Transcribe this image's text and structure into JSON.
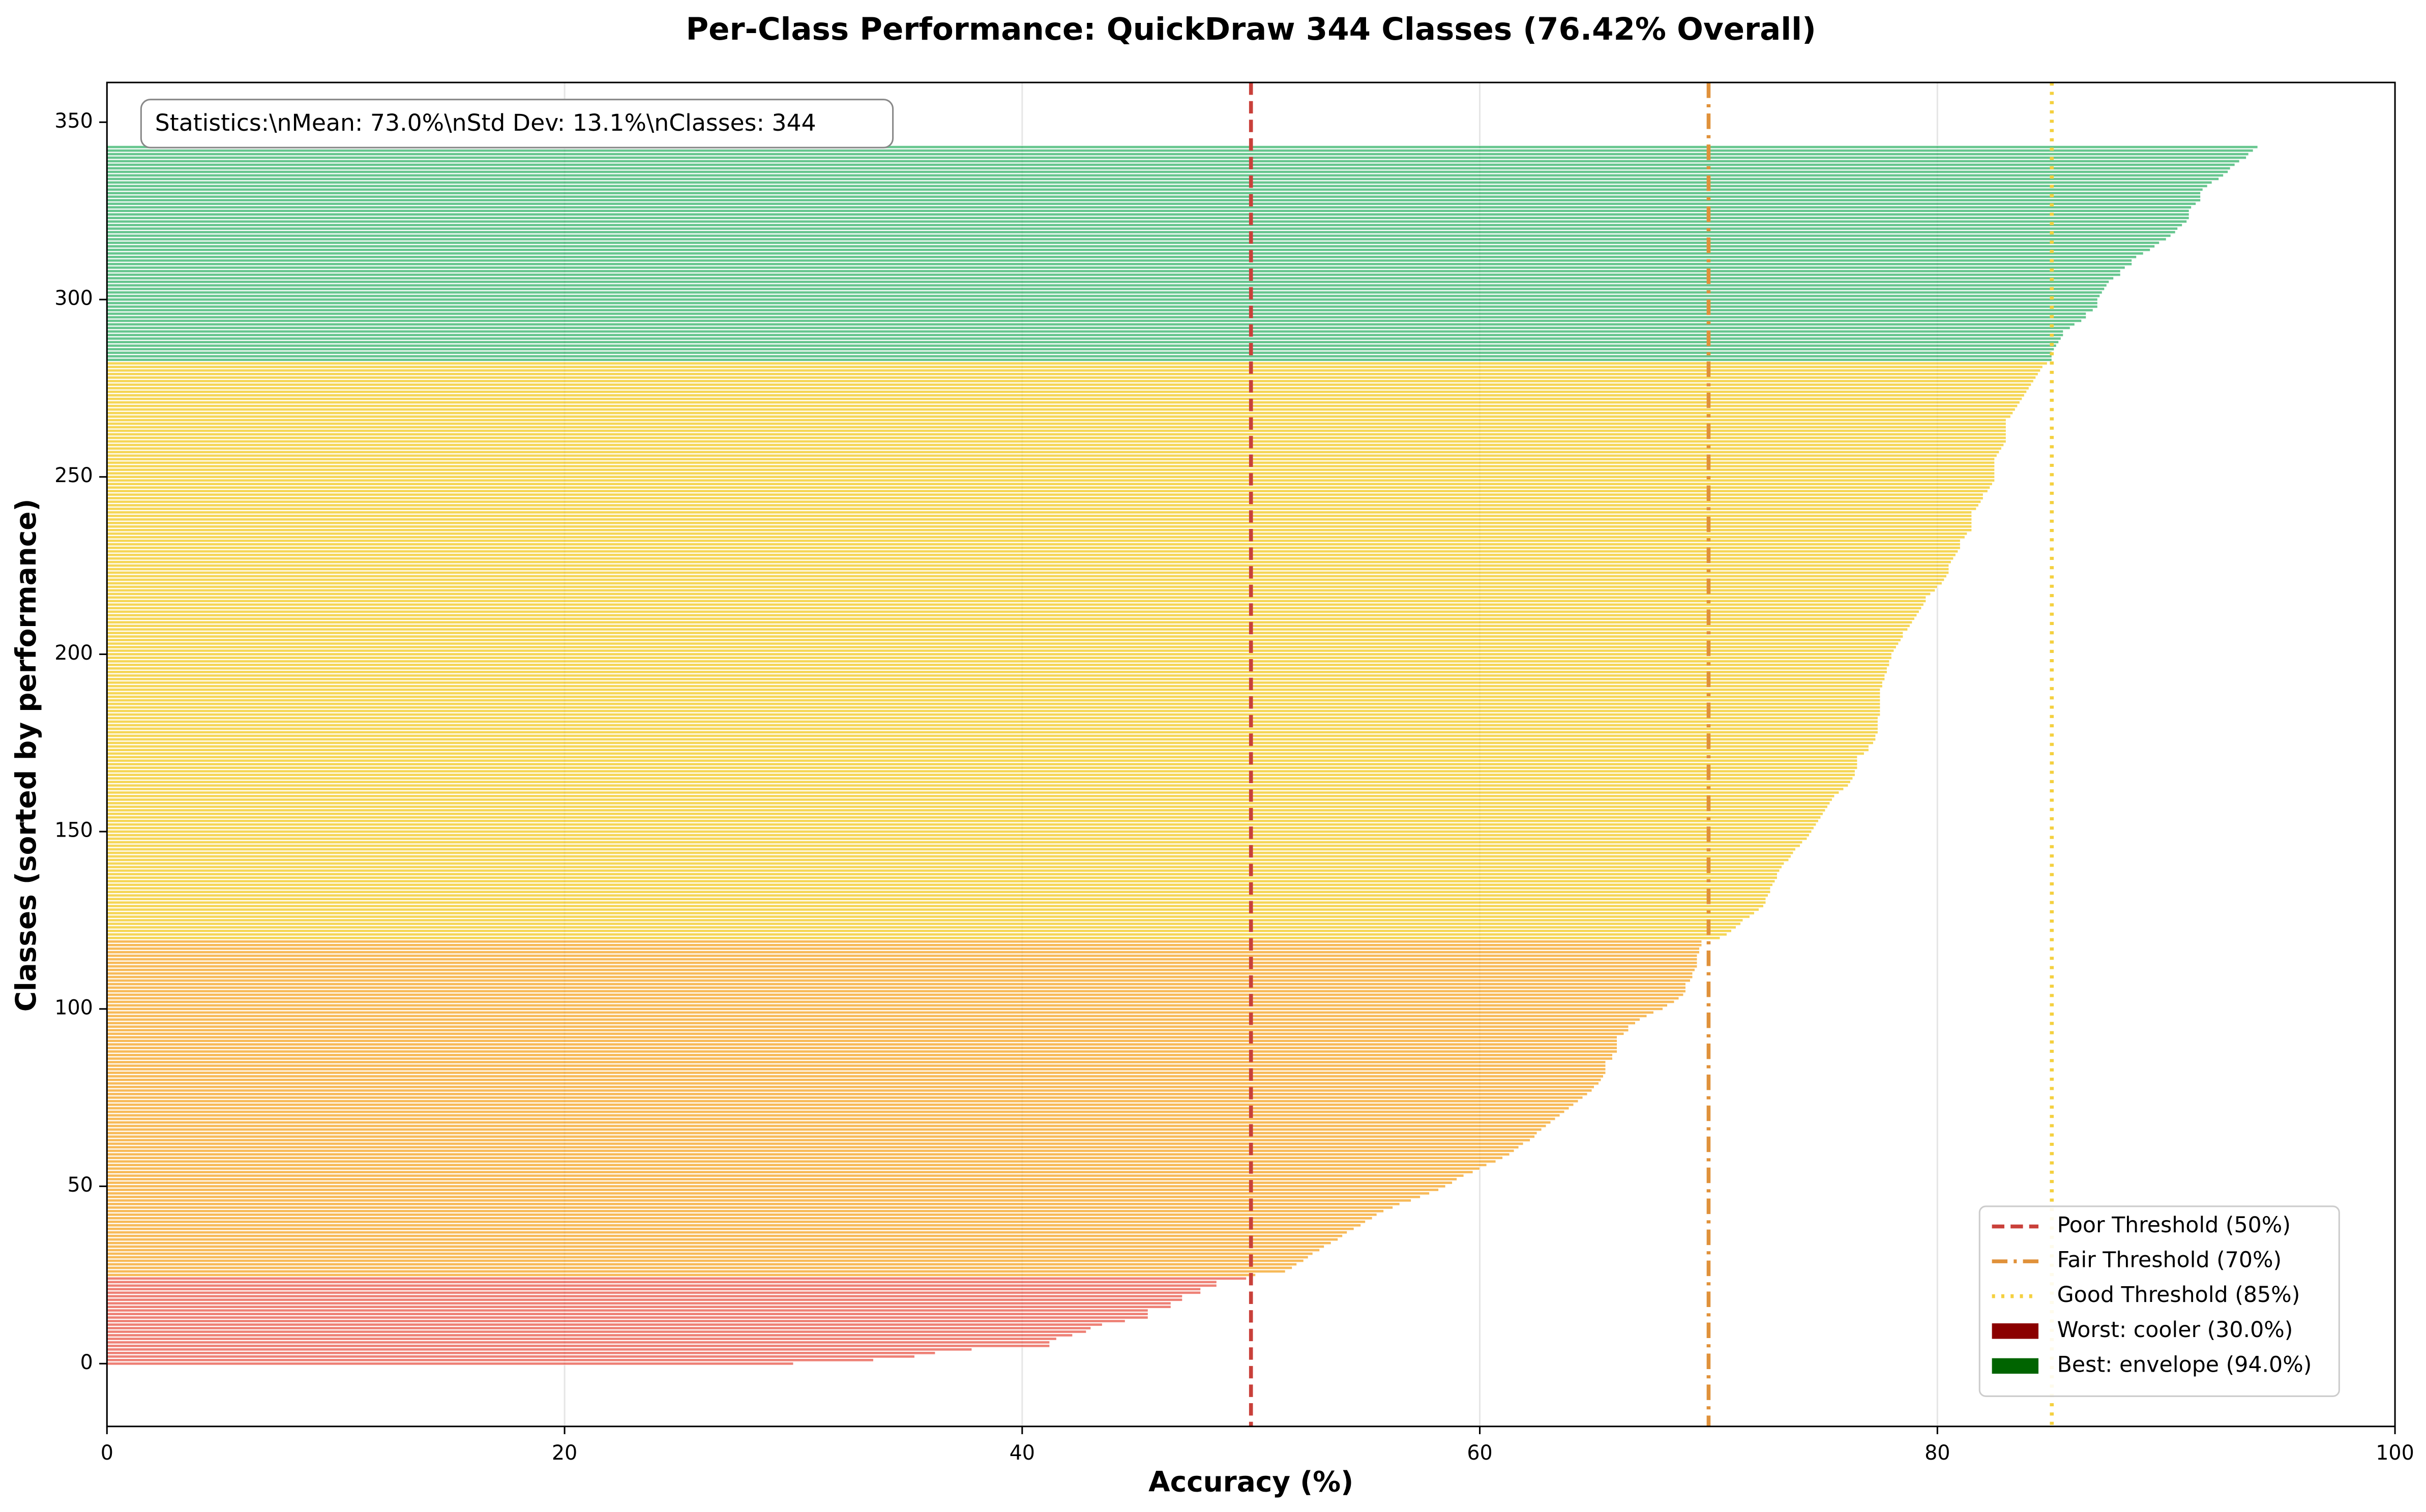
{
  "chart_data": {
    "type": "barh",
    "title": "Per-Class Performance: QuickDraw 344 Classes (76.42% Overall)",
    "x_label": "Accuracy (%)",
    "y_label": "Classes (sorted by performance)",
    "stats_text": "Statistics:\\nMean: 73.0%\\nStd Dev: 13.1%\\nClasses: 344",
    "xlim": [
      0,
      100
    ],
    "xticks": [
      0,
      20,
      40,
      60,
      80,
      100
    ],
    "ylim": [
      -17.7,
      361.2
    ],
    "yticks": [
      0,
      50,
      100,
      150,
      200,
      250,
      300,
      350
    ],
    "grid": true,
    "legend_position": "lower right",
    "bar_colors": [
      "#e74c3c",
      "#f39c12",
      "#f1c40f",
      "#27ae60"
    ],
    "thresholds": [
      {
        "name": "Poor Threshold (50%)",
        "value": 50,
        "color": "#c9403a",
        "style": "dashed"
      },
      {
        "name": "Fair Threshold (70%)",
        "value": 70,
        "color": "#e0913a",
        "style": "dashdot"
      },
      {
        "name": "Good Threshold (85%)",
        "value": 85,
        "color": "#f4d03f",
        "style": "dotted"
      }
    ],
    "highlights": [
      {
        "name": "Worst: cooler (30.0%)",
        "color": "#8b0000"
      },
      {
        "name": "Best: envelope (94.0%)",
        "color": "#006400"
      }
    ],
    "values": [
      30.0,
      33.5,
      35.3,
      36.2,
      37.8,
      41.2,
      41.2,
      41.5,
      42.2,
      42.8,
      43.0,
      43.5,
      44.5,
      45.5,
      45.5,
      45.5,
      46.5,
      46.5,
      47.0,
      47.0,
      47.8,
      47.8,
      48.5,
      48.5,
      49.8,
      50.2,
      51.5,
      51.8,
      52.0,
      52.3,
      52.5,
      52.7,
      53.0,
      53.2,
      53.5,
      53.8,
      54.0,
      54.2,
      54.5,
      54.8,
      55.0,
      55.3,
      55.5,
      55.8,
      56.2,
      56.5,
      57.0,
      57.4,
      57.8,
      58.2,
      58.5,
      58.8,
      59.0,
      59.3,
      59.7,
      60.0,
      60.3,
      60.7,
      61.0,
      61.3,
      61.5,
      61.7,
      61.9,
      62.2,
      62.4,
      62.5,
      62.7,
      62.9,
      63.1,
      63.3,
      63.5,
      63.7,
      63.9,
      64.1,
      64.3,
      64.5,
      64.7,
      64.9,
      65.0,
      65.2,
      65.3,
      65.4,
      65.5,
      65.5,
      65.5,
      65.5,
      65.8,
      65.8,
      66.0,
      66.0,
      66.0,
      66.0,
      66.0,
      66.3,
      66.5,
      66.5,
      66.8,
      67.0,
      67.3,
      67.6,
      68.0,
      68.2,
      68.5,
      68.7,
      68.9,
      69.0,
      69.0,
      69.0,
      69.2,
      69.3,
      69.3,
      69.4,
      69.5,
      69.5,
      69.5,
      69.5,
      69.6,
      69.6,
      69.7,
      69.7,
      70.5,
      70.8,
      71.0,
      71.2,
      71.4,
      71.5,
      71.8,
      72.0,
      72.2,
      72.4,
      72.5,
      72.5,
      72.6,
      72.7,
      72.7,
      72.8,
      72.9,
      73.0,
      73.0,
      73.1,
      73.2,
      73.3,
      73.5,
      73.6,
      73.7,
      73.8,
      74.0,
      74.1,
      74.3,
      74.4,
      74.5,
      74.6,
      74.7,
      74.8,
      74.9,
      75.0,
      75.1,
      75.2,
      75.3,
      75.4,
      75.5,
      75.7,
      75.9,
      76.1,
      76.2,
      76.3,
      76.4,
      76.4,
      76.5,
      76.5,
      76.5,
      76.5,
      76.8,
      77.0,
      77.0,
      77.2,
      77.3,
      77.3,
      77.4,
      77.4,
      77.4,
      77.4,
      77.4,
      77.5,
      77.5,
      77.5,
      77.5,
      77.5,
      77.5,
      77.5,
      77.5,
      77.6,
      77.6,
      77.7,
      77.7,
      77.8,
      77.8,
      77.9,
      77.9,
      78.0,
      78.0,
      78.1,
      78.2,
      78.3,
      78.4,
      78.5,
      78.5,
      78.7,
      78.8,
      78.9,
      79.0,
      79.1,
      79.2,
      79.3,
      79.4,
      79.5,
      79.5,
      79.7,
      79.9,
      80.0,
      80.2,
      80.3,
      80.4,
      80.5,
      80.5,
      80.5,
      80.6,
      80.7,
      80.8,
      80.9,
      81.0,
      81.0,
      81.0,
      81.2,
      81.3,
      81.5,
      81.5,
      81.5,
      81.5,
      81.5,
      81.5,
      81.7,
      81.8,
      81.9,
      82.0,
      82.0,
      82.2,
      82.3,
      82.4,
      82.5,
      82.5,
      82.5,
      82.5,
      82.5,
      82.5,
      82.5,
      82.6,
      82.7,
      82.8,
      82.9,
      83.0,
      83.0,
      83.0,
      83.0,
      83.0,
      83.0,
      83.0,
      83.2,
      83.3,
      83.4,
      83.5,
      83.6,
      83.7,
      83.8,
      83.9,
      84.0,
      84.1,
      84.2,
      84.3,
      84.4,
      84.5,
      84.6,
      84.8,
      85.0,
      85.0,
      85.0,
      85.1,
      85.2,
      85.3,
      85.4,
      85.5,
      85.5,
      85.8,
      86.0,
      86.3,
      86.5,
      86.5,
      86.8,
      87.0,
      87.0,
      87.0,
      87.1,
      87.2,
      87.3,
      87.4,
      87.5,
      87.7,
      88.0,
      88.0,
      88.2,
      88.5,
      88.5,
      88.7,
      89.0,
      89.3,
      89.5,
      89.7,
      90.0,
      90.2,
      90.4,
      90.5,
      90.7,
      90.9,
      91.0,
      91.0,
      91.0,
      91.1,
      91.3,
      91.5,
      91.5,
      91.5,
      91.6,
      91.8,
      92.0,
      92.3,
      92.5,
      92.7,
      92.8,
      93.0,
      93.2,
      93.5,
      93.6,
      93.8,
      94.0
    ]
  }
}
